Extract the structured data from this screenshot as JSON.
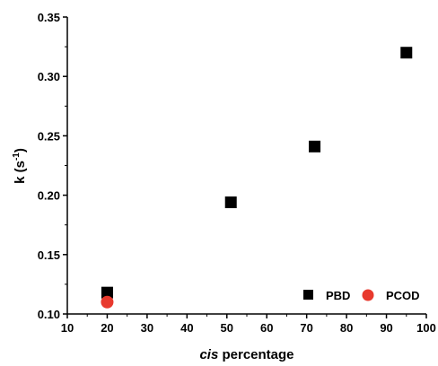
{
  "chart_data": {
    "type": "scatter",
    "xlabel_italic": "cis",
    "xlabel_rest": " percentage",
    "ylabel_main": "k (s",
    "ylabel_sup": "-1",
    "ylabel_close": ")",
    "xlim": [
      10,
      100
    ],
    "ylim": [
      0.1,
      0.35
    ],
    "x_ticks": [
      10,
      20,
      30,
      40,
      50,
      60,
      70,
      80,
      90,
      100
    ],
    "y_ticks": [
      "0.10",
      "0.15",
      "0.20",
      "0.25",
      "0.30",
      "0.35"
    ],
    "grid": false,
    "legend_position": "bottom-right",
    "series": [
      {
        "name": "PBD",
        "marker": "square",
        "color": "#000000",
        "points": [
          {
            "x": 20,
            "y": 0.118
          },
          {
            "x": 51,
            "y": 0.194
          },
          {
            "x": 72,
            "y": 0.241
          },
          {
            "x": 95,
            "y": 0.32
          }
        ]
      },
      {
        "name": "PCOD",
        "marker": "circle",
        "color": "#e8392d",
        "points": [
          {
            "x": 20,
            "y": 0.11
          }
        ]
      }
    ]
  }
}
